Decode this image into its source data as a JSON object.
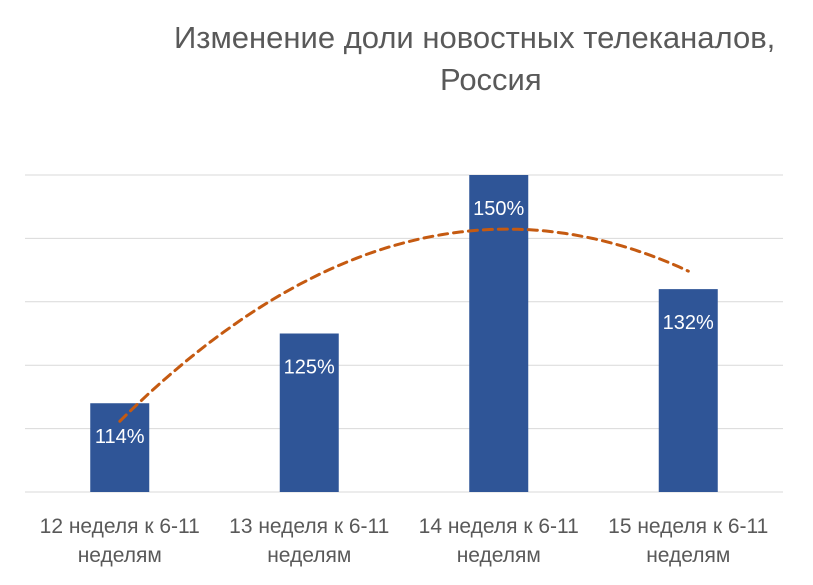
{
  "chart_data": {
    "type": "bar",
    "title": [
      "Изменение доли новостных телеканалов,",
      "Россия"
    ],
    "categories": [
      [
        "12 неделя к 6-11",
        "неделям"
      ],
      [
        "13 неделя к 6-11",
        "неделям"
      ],
      [
        "14 неделя к 6-11",
        "неделям"
      ],
      [
        "15 неделя к 6-11",
        "неделям"
      ]
    ],
    "values": [
      114,
      125,
      150,
      132
    ],
    "data_labels": [
      "114%",
      "125%",
      "150%",
      "132%"
    ],
    "value_unit": "%",
    "ylim": [
      100,
      150
    ],
    "y_gridlines": [
      100,
      110,
      120,
      130,
      140,
      150
    ],
    "y_axis_labels_shown": false,
    "grid": true,
    "legend": "none",
    "trendline": {
      "type": "polynomial",
      "style": "dashed"
    },
    "colors": {
      "bar": "#2F5597",
      "trendline": "#C55A11",
      "grid": "#D9D9D9",
      "text": "#595959",
      "data_label": "#FFFFFF"
    }
  }
}
